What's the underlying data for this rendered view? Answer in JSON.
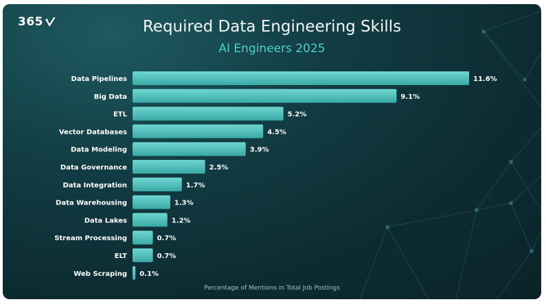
{
  "brand": {
    "logo_text": "365"
  },
  "colors": {
    "bar": "#4fc3c0",
    "bar_dark": "#2f9e9b",
    "accent": "#4fd0cc",
    "text": "#ffffff",
    "background": "#0e3036"
  },
  "chart_data": {
    "type": "bar",
    "orientation": "horizontal",
    "title": "Required Data Engineering Skills",
    "subtitle": "AI Engineers 2025",
    "xlabel": "Percentage of Mentions in Total Job Postings",
    "ylabel": "",
    "xlim": [
      0,
      11.6
    ],
    "grid": false,
    "categories": [
      "Data Pipelines",
      "Big Data",
      "ETL",
      "Vector Databases",
      "Data Modeling",
      "Data Governance",
      "Data Integration",
      "Data Warehousing",
      "Data Lakes",
      "Stream Processing",
      "ELT",
      "Web Scraping"
    ],
    "values": [
      11.6,
      9.1,
      5.2,
      4.5,
      3.9,
      2.5,
      1.7,
      1.3,
      1.2,
      0.7,
      0.7,
      0.1
    ],
    "value_labels": [
      "11.6%",
      "9.1%",
      "5.2%",
      "4.5%",
      "3.9%",
      "2.5%",
      "1.7%",
      "1.3%",
      "1.2%",
      "0.7%",
      "0.7%",
      "0.1%"
    ]
  }
}
